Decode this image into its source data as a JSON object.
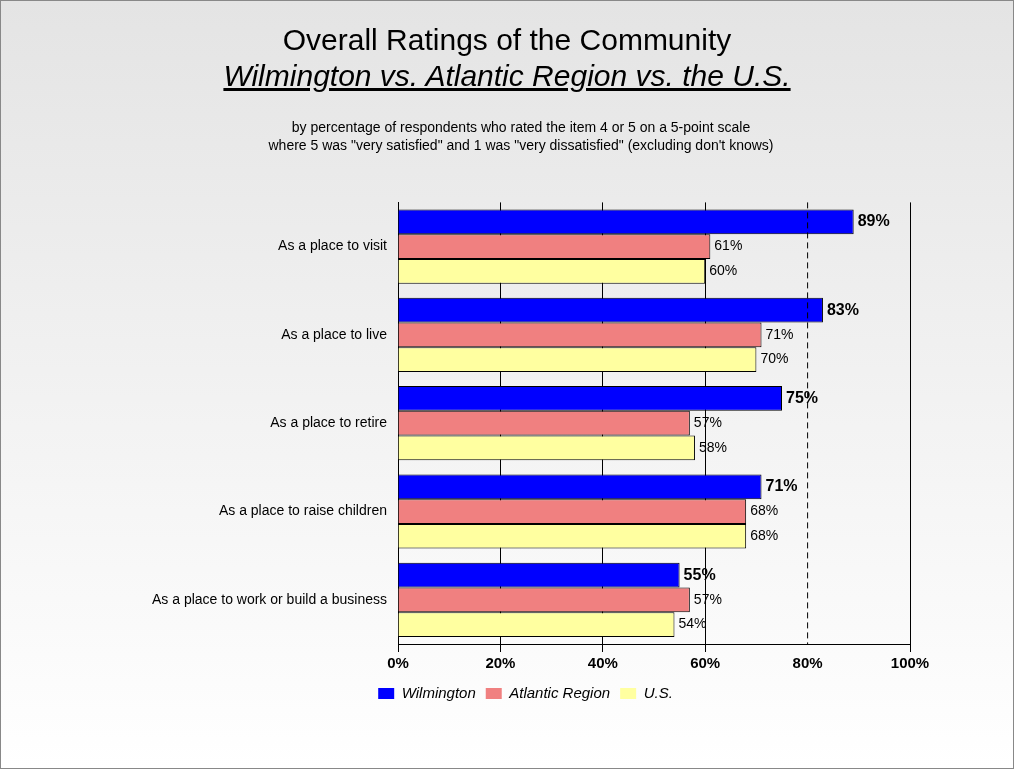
{
  "chart_data": {
    "type": "bar",
    "orientation": "horizontal",
    "title": "Overall Ratings of the Community",
    "subtitle": "Wilmington vs. Atlantic Region vs. the U.S.",
    "annotations": [
      "by percentage of respondents who rated the item 4 or 5 on a 5-point scale",
      "where 5 was \"very satisfied\" and 1 was \"very dissatisfied\" (excluding don't knows)"
    ],
    "categories": [
      "As a place to visit",
      "As a place to live",
      "As a place to retire",
      "As a place to raise children",
      "As a place to work or build a business"
    ],
    "series": [
      {
        "name": "Wilmington",
        "color": "#0000ff",
        "values": [
          89,
          83,
          75,
          71,
          55
        ],
        "value_labels": [
          "89%",
          "83%",
          "75%",
          "71%",
          "55%"
        ]
      },
      {
        "name": "Atlantic Region",
        "color": "#f08080",
        "values": [
          61,
          71,
          57,
          68,
          57
        ],
        "value_labels": [
          "61%",
          "71%",
          "57%",
          "68%",
          "57%"
        ]
      },
      {
        "name": "U.S.",
        "color": "#ffffa0",
        "values": [
          60,
          70,
          58,
          68,
          54
        ],
        "value_labels": [
          "60%",
          "70%",
          "58%",
          "68%",
          "54%"
        ]
      }
    ],
    "xlim": [
      0,
      100
    ],
    "xticks": [
      {
        "value": 0,
        "label": "0%"
      },
      {
        "value": 20,
        "label": "20%"
      },
      {
        "value": 40,
        "label": "40%"
      },
      {
        "value": 60,
        "label": "60%"
      },
      {
        "value": 80,
        "label": "80%"
      },
      {
        "value": 100,
        "label": "100%"
      }
    ],
    "ref_lines": [
      {
        "axis": "x",
        "value": 80,
        "line_style": "dashed"
      }
    ],
    "grid": "x",
    "legend": "bottom"
  }
}
